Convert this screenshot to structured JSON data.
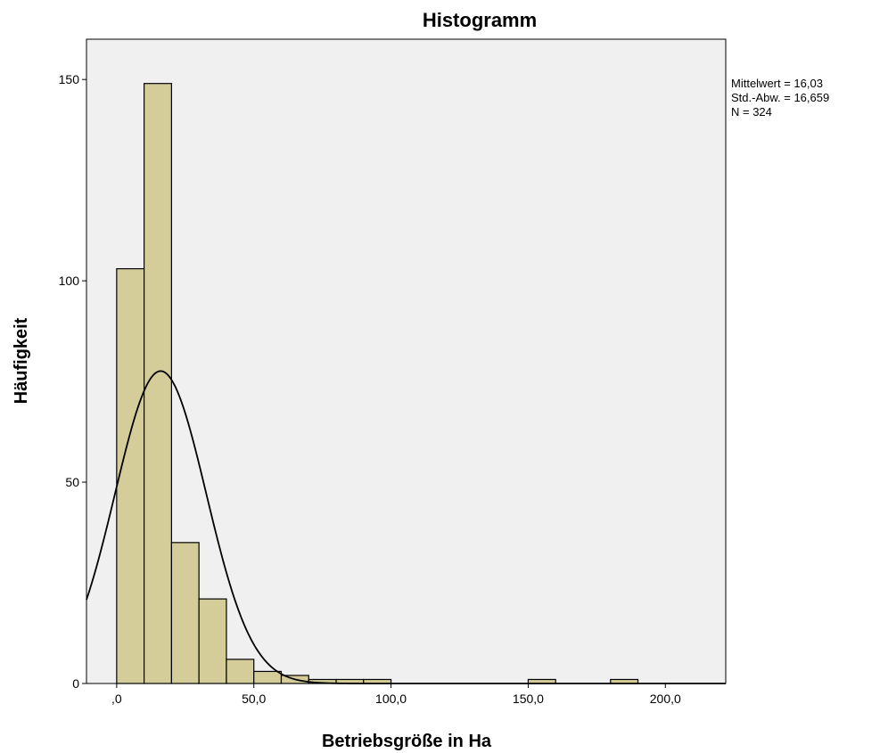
{
  "chart_data": {
    "type": "histogram",
    "title": "Histogramm",
    "xlabel": "Betriebsgröße in Ha",
    "ylabel": "Häufigkeit",
    "xlim": [
      -11,
      222
    ],
    "ylim": [
      0,
      160
    ],
    "x_ticks": [
      {
        "value": 0,
        "label": ",0"
      },
      {
        "value": 50,
        "label": "50,0"
      },
      {
        "value": 100,
        "label": "100,0"
      },
      {
        "value": 150,
        "label": "150,0"
      },
      {
        "value": 200,
        "label": "200,0"
      }
    ],
    "y_ticks": [
      {
        "value": 0,
        "label": "0"
      },
      {
        "value": 50,
        "label": "50"
      },
      {
        "value": 100,
        "label": "100"
      },
      {
        "value": 150,
        "label": "150"
      }
    ],
    "bin_width": 10,
    "bins": [
      {
        "x0": 0,
        "x1": 10,
        "count": 103
      },
      {
        "x0": 10,
        "x1": 20,
        "count": 149
      },
      {
        "x0": 20,
        "x1": 30,
        "count": 35
      },
      {
        "x0": 30,
        "x1": 40,
        "count": 21
      },
      {
        "x0": 40,
        "x1": 50,
        "count": 6
      },
      {
        "x0": 50,
        "x1": 60,
        "count": 3
      },
      {
        "x0": 60,
        "x1": 70,
        "count": 2
      },
      {
        "x0": 70,
        "x1": 80,
        "count": 1
      },
      {
        "x0": 80,
        "x1": 90,
        "count": 1
      },
      {
        "x0": 90,
        "x1": 100,
        "count": 1
      },
      {
        "x0": 150,
        "x1": 160,
        "count": 1
      },
      {
        "x0": 180,
        "x1": 190,
        "count": 1
      }
    ],
    "normal_curve": {
      "mean": 16.03,
      "sd": 16.659,
      "n": 324
    },
    "stats_text": [
      "Mittelwert = 16,03",
      "Std.-Abw. = 16,659",
      "N = 324"
    ],
    "colors": {
      "bar_fill": "#d4cd9a",
      "bar_stroke": "#000000",
      "plot_background": "#f0f0f0",
      "curve": "#000000"
    },
    "grid": false,
    "legend": "none"
  }
}
